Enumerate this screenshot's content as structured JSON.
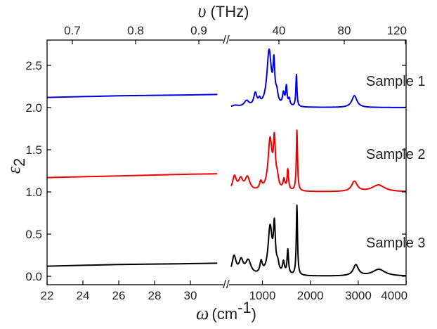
{
  "chart_data": {
    "type": "line",
    "title": "",
    "xlabel": {
      "symbol": "ω",
      "open": "(cm",
      "sup": "-1",
      "close": ")"
    },
    "x2label": {
      "symbol": "υ",
      "text": "(THz)"
    },
    "ylabel": {
      "symbol": "ε",
      "sub": "2"
    },
    "ylim": [
      -0.1,
      2.8
    ],
    "y_ticks": [
      "0.0",
      "0.5",
      "1.0",
      "1.5",
      "2.0",
      "2.5"
    ],
    "x_ticks_left": [
      "22",
      "24",
      "26",
      "28",
      "30"
    ],
    "x_ticks_right": [
      "1000",
      "2000",
      "3000",
      "4000"
    ],
    "x2_ticks": [
      "0.7",
      "0.8",
      "0.9",
      "40",
      "80",
      "120"
    ],
    "x_break_mark": "//",
    "series": [
      {
        "name": "Sample 1",
        "color": "#0000dd",
        "baseline": 2.0,
        "left_segment": [
          [
            22,
            2.12
          ],
          [
            24,
            2.13
          ],
          [
            26,
            2.14
          ],
          [
            28,
            2.145
          ],
          [
            30,
            2.15
          ],
          [
            31.5,
            2.155
          ]
        ],
        "peaks": [
          [
            350,
            0.02,
            90
          ],
          [
            620,
            0.07,
            70
          ],
          [
            830,
            0.15,
            45
          ],
          [
            930,
            0.06,
            30
          ],
          [
            1140,
            0.66,
            55
          ],
          [
            1240,
            0.44,
            22
          ],
          [
            1300,
            0.12,
            30
          ],
          [
            1440,
            0.14,
            25
          ],
          [
            1500,
            0.22,
            18
          ],
          [
            1560,
            0.08,
            20
          ],
          [
            1710,
            0.38,
            14
          ],
          [
            2920,
            0.14,
            65
          ]
        ]
      },
      {
        "name": "Sample 2",
        "color": "#ee0000",
        "baseline": 1.0,
        "left_segment": [
          [
            22,
            1.17
          ],
          [
            24,
            1.18
          ],
          [
            26,
            1.19
          ],
          [
            28,
            1.2
          ],
          [
            30,
            1.21
          ],
          [
            31.5,
            1.215
          ]
        ],
        "peaks": [
          [
            330,
            0.17,
            55
          ],
          [
            480,
            0.13,
            60
          ],
          [
            640,
            0.16,
            70
          ],
          [
            960,
            0.09,
            35
          ],
          [
            1160,
            0.6,
            50
          ],
          [
            1250,
            0.53,
            25
          ],
          [
            1310,
            0.12,
            30
          ],
          [
            1450,
            0.12,
            25
          ],
          [
            1530,
            0.24,
            18
          ],
          [
            1720,
            0.72,
            15
          ],
          [
            2920,
            0.12,
            70
          ],
          [
            3420,
            0.08,
            160
          ]
        ]
      },
      {
        "name": "Sample 3",
        "color": "#000000",
        "baseline": 0.0,
        "left_segment": [
          [
            22,
            0.12
          ],
          [
            24,
            0.13
          ],
          [
            26,
            0.14
          ],
          [
            28,
            0.145
          ],
          [
            30,
            0.15
          ],
          [
            31.5,
            0.155
          ]
        ],
        "peaks": [
          [
            320,
            0.22,
            60
          ],
          [
            490,
            0.16,
            60
          ],
          [
            660,
            0.17,
            80
          ],
          [
            970,
            0.14,
            35
          ],
          [
            1160,
            0.56,
            50
          ],
          [
            1250,
            0.53,
            25
          ],
          [
            1320,
            0.1,
            30
          ],
          [
            1440,
            0.14,
            25
          ],
          [
            1530,
            0.29,
            18
          ],
          [
            1720,
            0.83,
            15
          ],
          [
            2950,
            0.13,
            65
          ],
          [
            3430,
            0.08,
            160
          ]
        ]
      }
    ]
  }
}
